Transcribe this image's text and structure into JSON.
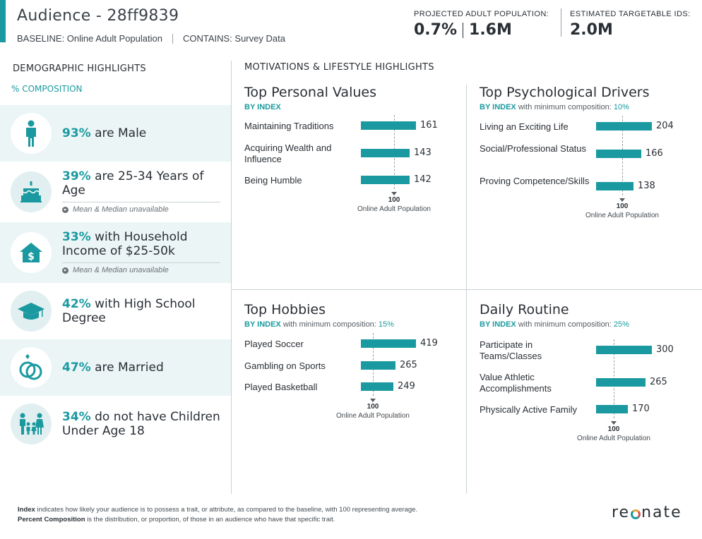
{
  "header": {
    "title": "Audience - 28ff9839",
    "baseline": "BASELINE: Online Adult Population",
    "contains": "CONTAINS: Survey Data",
    "projected_label": "PROJECTED ADULT POPULATION:",
    "projected_pct": "0.7%",
    "projected_count": "1.6M",
    "targetable_label": "ESTIMATED TARGETABLE IDS:",
    "targetable_value": "2.0M"
  },
  "demographics": {
    "heading": "DEMOGRAPHIC HIGHLIGHTS",
    "subheading": "% COMPOSITION",
    "items": [
      {
        "pct": "93%",
        "text": " are Male",
        "icon": "male-person-icon"
      },
      {
        "pct": "39%",
        "text": " are 25-34 Years of Age",
        "note": "Mean & Median unavailable",
        "icon": "birthday-cake-icon"
      },
      {
        "pct": "33%",
        "text": " with Household Income of $25-50k",
        "note": "Mean & Median unavailable",
        "icon": "house-dollar-icon"
      },
      {
        "pct": "42%",
        "text": " with High School Degree",
        "icon": "graduation-cap-icon"
      },
      {
        "pct": "47%",
        "text": " are Married",
        "icon": "wedding-rings-icon"
      },
      {
        "pct": "34%",
        "text": " do not have Children Under Age 18",
        "icon": "family-icon"
      }
    ]
  },
  "motivations": {
    "heading": "MOTIVATIONS & LIFESTYLE HIGHLIGHTS",
    "by_index": "BY INDEX",
    "with_min": " with minimum composition: ",
    "ref_value": "100",
    "ref_label": "Online Adult Population",
    "panels": [
      {
        "title": "Top Personal Values",
        "min_comp": "",
        "rows": [
          {
            "label": "Maintaining Traditions",
            "value": 161
          },
          {
            "label": "Acquiring Wealth and Influence",
            "value": 143
          },
          {
            "label": "Being Humble",
            "value": 142
          }
        ]
      },
      {
        "title": "Top Psychological Drivers",
        "min_comp": "10%",
        "rows": [
          {
            "label": "Living an Exciting Life",
            "value": 204
          },
          {
            "label": "Social/Professional Status",
            "value": 166
          },
          {
            "label": "Proving Competence/Skills",
            "value": 138
          }
        ]
      },
      {
        "title": "Top Hobbies",
        "min_comp": "15%",
        "rows": [
          {
            "label": "Played Soccer",
            "value": 419
          },
          {
            "label": "Gambling on Sports",
            "value": 265
          },
          {
            "label": "Played Basketball",
            "value": 249
          }
        ]
      },
      {
        "title": "Daily Routine",
        "min_comp": "25%",
        "rows": [
          {
            "label": "Participate in Teams/Classes",
            "value": 300
          },
          {
            "label": "Value Athletic Accomplishments",
            "value": 265
          },
          {
            "label": "Physically Active Family",
            "value": 170
          }
        ]
      }
    ]
  },
  "footer": {
    "index_term": "Index",
    "index_def": " indicates how likely your audience is to possess a trait, or attribute, as compared to the baseline, with 100 representing average.",
    "pc_term": "Percent Composition",
    "pc_def": " is the distribution, or proportion, of those in an audience who have that specific trait."
  },
  "brand": {
    "logo_pre": "re",
    "logo_post": "nate",
    "accent": "#1a9aa0"
  }
}
